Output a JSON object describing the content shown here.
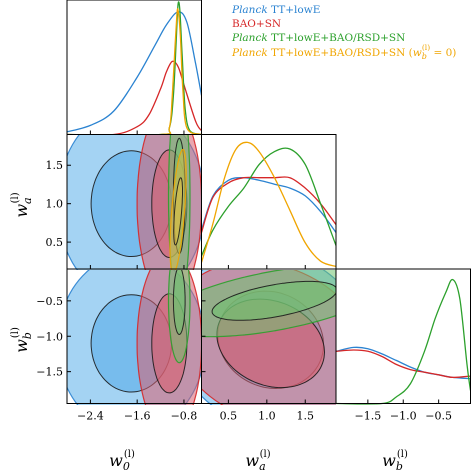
{
  "chart_data": {
    "type": "corner",
    "parameters": [
      {
        "name": "w_0^{(l)}",
        "label_main": "w",
        "label_sub": "0",
        "label_sup": "(l)",
        "range": [
          -2.8,
          -0.5
        ],
        "ticks": [
          -2.4,
          -1.6,
          -0.8
        ],
        "tick_labels": [
          "−2.4",
          "−1.6",
          "−0.8"
        ]
      },
      {
        "name": "w_a^{(l)}",
        "label_main": "w",
        "label_sub": "a",
        "label_sup": "(l)",
        "range": [
          0.15,
          1.9
        ],
        "ticks": [
          0.5,
          1.0,
          1.5
        ],
        "tick_labels": [
          "0.5",
          "1.0",
          "1.5"
        ]
      },
      {
        "name": "w_b^{(l)}",
        "label_main": "w",
        "label_sub": "b",
        "label_sup": "(l)",
        "range": [
          -1.95,
          -0.05
        ],
        "ticks": [
          -1.5,
          -1.0,
          -0.5
        ],
        "tick_labels": [
          "−1.5",
          "−1.0",
          "−0.5"
        ]
      }
    ],
    "y_tick_labels": {
      "wa": [
        "0.5",
        "1.0",
        "1.5"
      ],
      "wb": [
        "−1.5",
        "−1.0",
        "−0.5"
      ]
    },
    "legend_position": "top-right",
    "legend": [
      {
        "italic": "Planck",
        "text": " TT+lowE",
        "color": "#2b83d1"
      },
      {
        "italic": "",
        "text": "BAO+SN",
        "color": "#d62728"
      },
      {
        "italic": "Planck",
        "text": " TT+lowE+BAO/RSD+SN",
        "color": "#2ca02c"
      },
      {
        "italic": "Planck",
        "text": " TT+lowE+BAO/RSD+SN (w_b^{(l)} = 0)",
        "text_main": " TT+lowE+BAO/RSD+SN (",
        "text_w": "w",
        "text_sub": "b",
        "text_sup": "(l)",
        "text_end": " = 0)",
        "color": "#f0a500"
      }
    ],
    "series": [
      {
        "name": "Planck TT+lowE",
        "color": "#2b83d1",
        "fill": "#5aaeea",
        "w0_pdf": {
          "x": [
            -2.8,
            -2.4,
            -2.0,
            -1.6,
            -1.3,
            -1.1,
            -0.9,
            -0.75,
            -0.6,
            -0.5
          ],
          "y": [
            0.02,
            0.07,
            0.18,
            0.44,
            0.68,
            0.84,
            0.94,
            0.86,
            0.54,
            0.3
          ]
        },
        "wa_pdf": {
          "x": [
            0.15,
            0.3,
            0.5,
            0.7,
            0.9,
            1.1,
            1.3,
            1.5,
            1.7,
            1.9
          ],
          "y": [
            0.3,
            0.56,
            0.68,
            0.7,
            0.68,
            0.65,
            0.62,
            0.56,
            0.44,
            0.28
          ]
        },
        "wb_pdf": {
          "x": [
            -1.95,
            -1.7,
            -1.5,
            -1.3,
            -1.1,
            -0.9,
            -0.7,
            -0.5,
            -0.3,
            -0.05
          ],
          "y": [
            0.4,
            0.43,
            0.42,
            0.38,
            0.33,
            0.28,
            0.24,
            0.22,
            0.2,
            0.19
          ]
        },
        "contours": {
          "w0_wa": {
            "center": [
              -1.7,
              1.0
            ],
            "sigma": [
              0.55,
              0.55
            ],
            "rho": 0.0
          },
          "w0_wb": {
            "center": [
              -1.7,
              -1.1
            ],
            "sigma": [
              0.55,
              0.55
            ],
            "rho": 0.0
          },
          "wa_wb": {
            "center": [
              1.05,
              -1.05
            ],
            "sigma": [
              0.55,
              0.55
            ],
            "rho": -0.1
          }
        }
      },
      {
        "name": "BAO+SN",
        "color": "#d62728",
        "fill": "#d95f70",
        "w0_pdf": {
          "x": [
            -2.8,
            -2.0,
            -1.6,
            -1.4,
            -1.2,
            -1.1,
            -1.0,
            -0.9,
            -0.8,
            -0.6,
            -0.5
          ],
          "y": [
            0.0,
            0.0,
            0.06,
            0.15,
            0.35,
            0.48,
            0.56,
            0.52,
            0.38,
            0.1,
            0.03
          ]
        },
        "wa_pdf": {
          "x": [
            0.15,
            0.3,
            0.5,
            0.7,
            0.9,
            1.1,
            1.3,
            1.5,
            1.7,
            1.9
          ],
          "y": [
            0.28,
            0.55,
            0.66,
            0.7,
            0.7,
            0.7,
            0.7,
            0.62,
            0.5,
            0.34
          ]
        },
        "wb_pdf": {
          "x": [
            -1.95,
            -1.7,
            -1.5,
            -1.3,
            -1.1,
            -0.9,
            -0.7,
            -0.5,
            -0.3,
            -0.05
          ],
          "y": [
            0.4,
            0.41,
            0.4,
            0.36,
            0.3,
            0.26,
            0.24,
            0.22,
            0.2,
            0.21
          ]
        },
        "contours": {
          "w0_wa": {
            "center": [
              -1.05,
              1.0
            ],
            "sigma": [
              0.24,
              0.56
            ],
            "rho": 0.0
          },
          "w0_wb": {
            "center": [
              -1.05,
              -1.1
            ],
            "sigma": [
              0.24,
              0.56
            ],
            "rho": 0.0
          },
          "wa_wb": {
            "center": [
              1.05,
              -1.1
            ],
            "sigma": [
              0.56,
              0.5
            ],
            "rho": -0.2
          }
        }
      },
      {
        "name": "Planck TT+lowE+BAO/RSD+SN",
        "color": "#2ca02c",
        "fill": "#6fc26f",
        "w0_pdf": {
          "x": [
            -2.8,
            -1.2,
            -1.05,
            -0.98,
            -0.93,
            -0.9,
            -0.87,
            -0.83,
            -0.78,
            -0.7,
            -0.5
          ],
          "y": [
            0.0,
            0.0,
            0.05,
            0.3,
            0.75,
            1.0,
            0.95,
            0.6,
            0.2,
            0.03,
            0.0
          ]
        },
        "wa_pdf": {
          "x": [
            0.15,
            0.3,
            0.5,
            0.7,
            0.9,
            1.1,
            1.3,
            1.5,
            1.7,
            1.9
          ],
          "y": [
            0.1,
            0.3,
            0.48,
            0.62,
            0.8,
            0.9,
            0.92,
            0.8,
            0.5,
            0.18
          ]
        },
        "wb_pdf": {
          "x": [
            -1.95,
            -1.3,
            -1.1,
            -0.9,
            -0.7,
            -0.55,
            -0.4,
            -0.3,
            -0.2,
            -0.1,
            -0.05
          ],
          "y": [
            0.0,
            0.0,
            0.05,
            0.15,
            0.4,
            0.65,
            0.85,
            0.95,
            0.8,
            0.3,
            0.1
          ]
        },
        "contours": {
          "w0_wa": {
            "center": [
              -0.88,
              1.1
            ],
            "sigma": [
              0.08,
              0.6
            ],
            "rho": 0.0
          },
          "w0_wb": {
            "center": [
              -0.88,
              -0.5
            ],
            "sigma": [
              0.08,
              0.38
            ],
            "rho": 0.0
          },
          "wa_wb": {
            "center": [
              1.1,
              -0.5
            ],
            "sigma": [
              0.65,
              0.22
            ],
            "rho": 0.55
          }
        }
      },
      {
        "name": "Planck TT+lowE+BAO/RSD+SN (w_b^{(l)} = 0)",
        "color": "#f0a500",
        "fill": "#d8bb48",
        "w0_pdf": {
          "x": [
            -2.8,
            -1.2,
            -1.05,
            -1.0,
            -0.95,
            -0.92,
            -0.9,
            -0.86,
            -0.82,
            -0.75,
            -0.5
          ],
          "y": [
            0.0,
            0.0,
            0.05,
            0.3,
            0.7,
            0.92,
            0.95,
            0.75,
            0.35,
            0.05,
            0.0
          ]
        },
        "wa_pdf": {
          "x": [
            0.15,
            0.3,
            0.45,
            0.6,
            0.75,
            0.9,
            1.1,
            1.3,
            1.5,
            1.7,
            1.9
          ],
          "y": [
            0.05,
            0.35,
            0.7,
            0.92,
            0.97,
            0.9,
            0.7,
            0.45,
            0.2,
            0.06,
            0.02
          ]
        },
        "contours": {
          "w0_wa": {
            "center": [
              -0.9,
              0.9
            ],
            "sigma": [
              0.06,
              0.35
            ],
            "rho": 0.6
          }
        }
      }
    ]
  }
}
